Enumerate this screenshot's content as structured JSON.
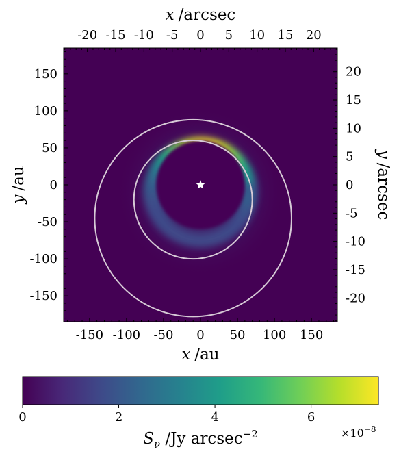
{
  "chart_data": [
    {
      "type": "heatmap",
      "title": "",
      "x": {
        "label_var": "x",
        "label_unit": "/au",
        "range": [
          -185,
          185
        ],
        "ticks": [
          -150,
          -100,
          -50,
          0,
          50,
          100,
          150
        ],
        "tick_labels": [
          "-150",
          "-100",
          "-50",
          "0",
          "50",
          "100",
          "150"
        ]
      },
      "y": {
        "label_var": "y",
        "label_unit": "/au",
        "range": [
          -185,
          185
        ],
        "ticks": [
          -150,
          -100,
          -50,
          0,
          50,
          100,
          150
        ],
        "tick_labels": [
          "-150",
          "-100",
          "-50",
          "0",
          "50",
          "100",
          "150"
        ]
      },
      "x2": {
        "label_var": "x",
        "label_unit": "/arcsec",
        "range": [
          -24.2,
          24.2
        ],
        "ticks": [
          -20,
          -15,
          -10,
          -5,
          0,
          5,
          10,
          15,
          20
        ],
        "tick_labels": [
          "-20",
          "-15",
          "-10",
          "-5",
          "0",
          "5",
          "10",
          "15",
          "20"
        ]
      },
      "y2": {
        "label_var": "y",
        "label_unit": "/arcsec",
        "range": [
          -24.2,
          24.2
        ],
        "ticks": [
          -20,
          -15,
          -10,
          -5,
          0,
          5,
          10,
          15,
          20
        ],
        "tick_labels": [
          "-20",
          "-15",
          "-10",
          "-5",
          "0",
          "5",
          "10",
          "15",
          "20"
        ]
      },
      "colormap": "viridis",
      "color_stops": [
        "#440154",
        "#482878",
        "#3e4a89",
        "#31688e",
        "#26828e",
        "#1f9e89",
        "#35b779",
        "#6ece58",
        "#b5de2b",
        "#fde725"
      ],
      "emission_ring": {
        "center": [
          0,
          -10
        ],
        "radius_au": 65,
        "brightness_peak_angle_deg": 90,
        "peak_value": 7.3e-08,
        "min_value": 1.6e-08
      },
      "dark_cavity": {
        "center": [
          0,
          0
        ],
        "radius_au": 60
      },
      "circles": [
        {
          "center": [
            -10,
            -20
          ],
          "radius_au": 80,
          "color": "#d6cad6"
        },
        {
          "center": [
            -10,
            -45
          ],
          "radius_au": 133,
          "color": "#d6cad6"
        }
      ],
      "star": {
        "position": [
          0,
          0
        ],
        "marker": "star",
        "color": "#ffffff"
      },
      "colorbar": {
        "range": [
          0,
          7.4
        ],
        "ticks": [
          0,
          2,
          4,
          6
        ],
        "tick_labels": [
          "0",
          "2",
          "4",
          "6"
        ],
        "offset_text": "×10",
        "offset_exp": "−8",
        "label_var": "S",
        "label_sub": "ν",
        "label_unit": " /Jy arcsec",
        "label_exp": "−2"
      }
    }
  ]
}
